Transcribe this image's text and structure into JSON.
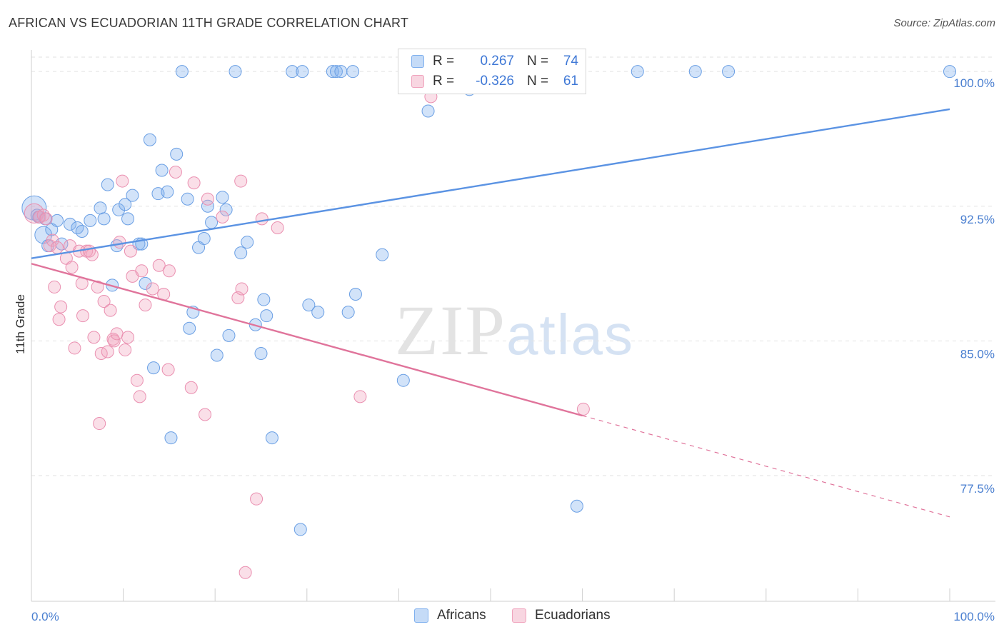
{
  "title": "AFRICAN VS ECUADORIAN 11TH GRADE CORRELATION CHART",
  "source": "Source: ZipAtlas.com",
  "watermark": {
    "zip": "ZIP",
    "atlas": "atlas"
  },
  "legend": {
    "rows": [
      {
        "r_label": "R =",
        "r_value": "0.267",
        "n_label": "N =",
        "n_value": "74",
        "color": "#7fb0ee"
      },
      {
        "r_label": "R =",
        "r_value": "-0.326",
        "n_label": "N =",
        "n_value": "61",
        "color": "#f0a3bd"
      }
    ]
  },
  "bottom_legend": [
    {
      "label": "Africans",
      "color": "#7fb0ee"
    },
    {
      "label": "Ecuadorians",
      "color": "#f0a3bd"
    }
  ],
  "chart_data": {
    "type": "scatter",
    "title": "AFRICAN VS ECUADORIAN 11TH GRADE CORRELATION CHART",
    "xlabel": "",
    "ylabel": "11th Grade",
    "xlim": [
      0,
      100
    ],
    "ylim": [
      70.5,
      101.2
    ],
    "x_tick_labels": [
      "0.0%",
      "100.0%"
    ],
    "y_ticks": [
      77.5,
      85.0,
      92.5,
      100.0
    ],
    "y_tick_labels": [
      "77.5%",
      "85.0%",
      "92.5%",
      "100.0%"
    ],
    "grid": true,
    "series": [
      {
        "name": "Africans",
        "color": "#5b93e3",
        "trend": {
          "x": [
            0,
            100
          ],
          "y": [
            89.6,
            97.9
          ],
          "dashed_from": null
        },
        "points": [
          [
            0.3,
            92.4,
            2
          ],
          [
            1.3,
            90.9,
            1.4
          ],
          [
            0.8,
            91.9,
            1
          ],
          [
            1.5,
            91.8,
            1
          ],
          [
            2.2,
            91.2,
            1
          ],
          [
            2.8,
            91.7,
            1
          ],
          [
            3.3,
            90.4,
            1
          ],
          [
            4.2,
            91.5,
            1
          ],
          [
            5.0,
            91.3,
            1
          ],
          [
            5.5,
            91.1,
            1
          ],
          [
            6.4,
            91.7,
            1
          ],
          [
            7.5,
            92.4,
            1
          ],
          [
            7.9,
            91.8,
            1
          ],
          [
            8.3,
            93.7,
            1
          ],
          [
            8.8,
            88.1,
            1
          ],
          [
            9.3,
            90.3,
            1
          ],
          [
            9.5,
            92.3,
            1
          ],
          [
            10.2,
            92.6,
            1
          ],
          [
            10.5,
            91.8,
            1
          ],
          [
            11.0,
            93.1,
            1
          ],
          [
            11.7,
            90.4,
            1
          ],
          [
            12.0,
            90.4,
            1
          ],
          [
            12.4,
            88.2,
            1
          ],
          [
            12.9,
            96.2,
            1
          ],
          [
            13.3,
            83.5,
            1
          ],
          [
            13.8,
            93.2,
            1
          ],
          [
            14.2,
            94.5,
            1
          ],
          [
            14.8,
            93.3,
            1
          ],
          [
            15.2,
            79.6,
            1
          ],
          [
            15.8,
            95.4,
            1
          ],
          [
            16.4,
            100.0,
            1
          ],
          [
            17.0,
            92.9,
            1
          ],
          [
            17.2,
            85.7,
            1
          ],
          [
            17.6,
            86.6,
            1
          ],
          [
            18.2,
            90.2,
            1
          ],
          [
            18.8,
            90.7,
            1
          ],
          [
            19.2,
            92.5,
            1
          ],
          [
            19.6,
            91.6,
            1
          ],
          [
            20.2,
            84.2,
            1
          ],
          [
            20.8,
            93.0,
            1
          ],
          [
            21.2,
            92.3,
            1
          ],
          [
            21.5,
            85.3,
            1
          ],
          [
            22.2,
            100.0,
            1
          ],
          [
            22.8,
            89.9,
            1
          ],
          [
            23.5,
            90.5,
            1
          ],
          [
            24.4,
            85.9,
            1
          ],
          [
            25.0,
            84.3,
            1
          ],
          [
            25.3,
            87.3,
            1
          ],
          [
            25.6,
            86.4,
            1
          ],
          [
            26.2,
            79.6,
            1
          ],
          [
            28.4,
            100.0,
            1
          ],
          [
            29.3,
            74.5,
            1
          ],
          [
            29.5,
            100.0,
            1
          ],
          [
            30.2,
            87.0,
            1
          ],
          [
            31.2,
            86.6,
            1
          ],
          [
            32.8,
            100.0,
            1
          ],
          [
            33.2,
            100.0,
            1
          ],
          [
            33.7,
            100.0,
            1
          ],
          [
            34.5,
            86.6,
            1
          ],
          [
            35.0,
            100.0,
            1
          ],
          [
            35.3,
            87.6,
            1
          ],
          [
            38.2,
            89.8,
            1
          ],
          [
            40.5,
            82.8,
            1
          ],
          [
            41.5,
            100.0,
            1
          ],
          [
            43.2,
            97.8,
            1
          ],
          [
            46.3,
            100.0,
            1
          ],
          [
            47.7,
            99.0,
            1
          ],
          [
            59.4,
            75.8,
            1
          ],
          [
            66.0,
            100.0,
            1
          ],
          [
            72.3,
            100.0,
            1
          ],
          [
            75.9,
            100.0,
            1
          ],
          [
            100.0,
            100.0,
            1
          ],
          [
            0.6,
            92.0,
            1
          ],
          [
            1.8,
            90.3,
            1
          ]
        ]
      },
      {
        "name": "Ecuadorians",
        "color": "#e0749b",
        "trend": {
          "x": [
            0,
            100
          ],
          "y": [
            89.3,
            75.2
          ],
          "dashed_from": 60
        },
        "points": [
          [
            0.3,
            92.1,
            1.6
          ],
          [
            0.9,
            91.9,
            1
          ],
          [
            1.3,
            92.0,
            1
          ],
          [
            1.6,
            91.8,
            1
          ],
          [
            2.0,
            90.3,
            1
          ],
          [
            2.3,
            90.6,
            1
          ],
          [
            2.5,
            88.0,
            1
          ],
          [
            2.8,
            90.2,
            1
          ],
          [
            3.0,
            86.2,
            1
          ],
          [
            3.2,
            86.9,
            1
          ],
          [
            3.8,
            89.6,
            1
          ],
          [
            4.2,
            90.3,
            1
          ],
          [
            4.4,
            89.1,
            1
          ],
          [
            4.7,
            84.6,
            1
          ],
          [
            5.2,
            90.0,
            1
          ],
          [
            5.5,
            88.2,
            1
          ],
          [
            5.6,
            86.4,
            1
          ],
          [
            6.0,
            90.0,
            1
          ],
          [
            6.3,
            90.0,
            1
          ],
          [
            6.6,
            89.8,
            1
          ],
          [
            6.8,
            85.2,
            1
          ],
          [
            7.2,
            88.0,
            1
          ],
          [
            7.4,
            80.4,
            1
          ],
          [
            7.6,
            84.3,
            1
          ],
          [
            7.9,
            87.2,
            1
          ],
          [
            8.3,
            84.4,
            1
          ],
          [
            8.6,
            86.7,
            1
          ],
          [
            8.9,
            85.1,
            1
          ],
          [
            9.0,
            85.0,
            1
          ],
          [
            9.3,
            85.4,
            1
          ],
          [
            9.6,
            90.5,
            1
          ],
          [
            9.9,
            93.9,
            1
          ],
          [
            10.2,
            84.5,
            1
          ],
          [
            10.5,
            85.2,
            1
          ],
          [
            10.8,
            90.0,
            1
          ],
          [
            11.0,
            88.6,
            1
          ],
          [
            11.5,
            82.8,
            1
          ],
          [
            11.8,
            81.9,
            1
          ],
          [
            12.0,
            88.9,
            1
          ],
          [
            12.4,
            87.0,
            1
          ],
          [
            13.2,
            87.9,
            1
          ],
          [
            13.9,
            89.2,
            1
          ],
          [
            14.4,
            87.6,
            1
          ],
          [
            14.9,
            83.4,
            1
          ],
          [
            15.0,
            88.9,
            1
          ],
          [
            15.7,
            94.4,
            1
          ],
          [
            17.4,
            82.4,
            1
          ],
          [
            17.7,
            93.8,
            1
          ],
          [
            18.9,
            80.9,
            1
          ],
          [
            19.2,
            92.9,
            1
          ],
          [
            20.8,
            91.9,
            1
          ],
          [
            22.5,
            87.4,
            1
          ],
          [
            22.8,
            93.9,
            1
          ],
          [
            22.9,
            87.9,
            1
          ],
          [
            23.3,
            72.1,
            1
          ],
          [
            24.5,
            76.2,
            1
          ],
          [
            25.1,
            91.8,
            1
          ],
          [
            26.8,
            91.3,
            1
          ],
          [
            35.8,
            81.9,
            1
          ],
          [
            60.1,
            81.2,
            1
          ],
          [
            43.5,
            98.6,
            1
          ]
        ]
      }
    ]
  }
}
